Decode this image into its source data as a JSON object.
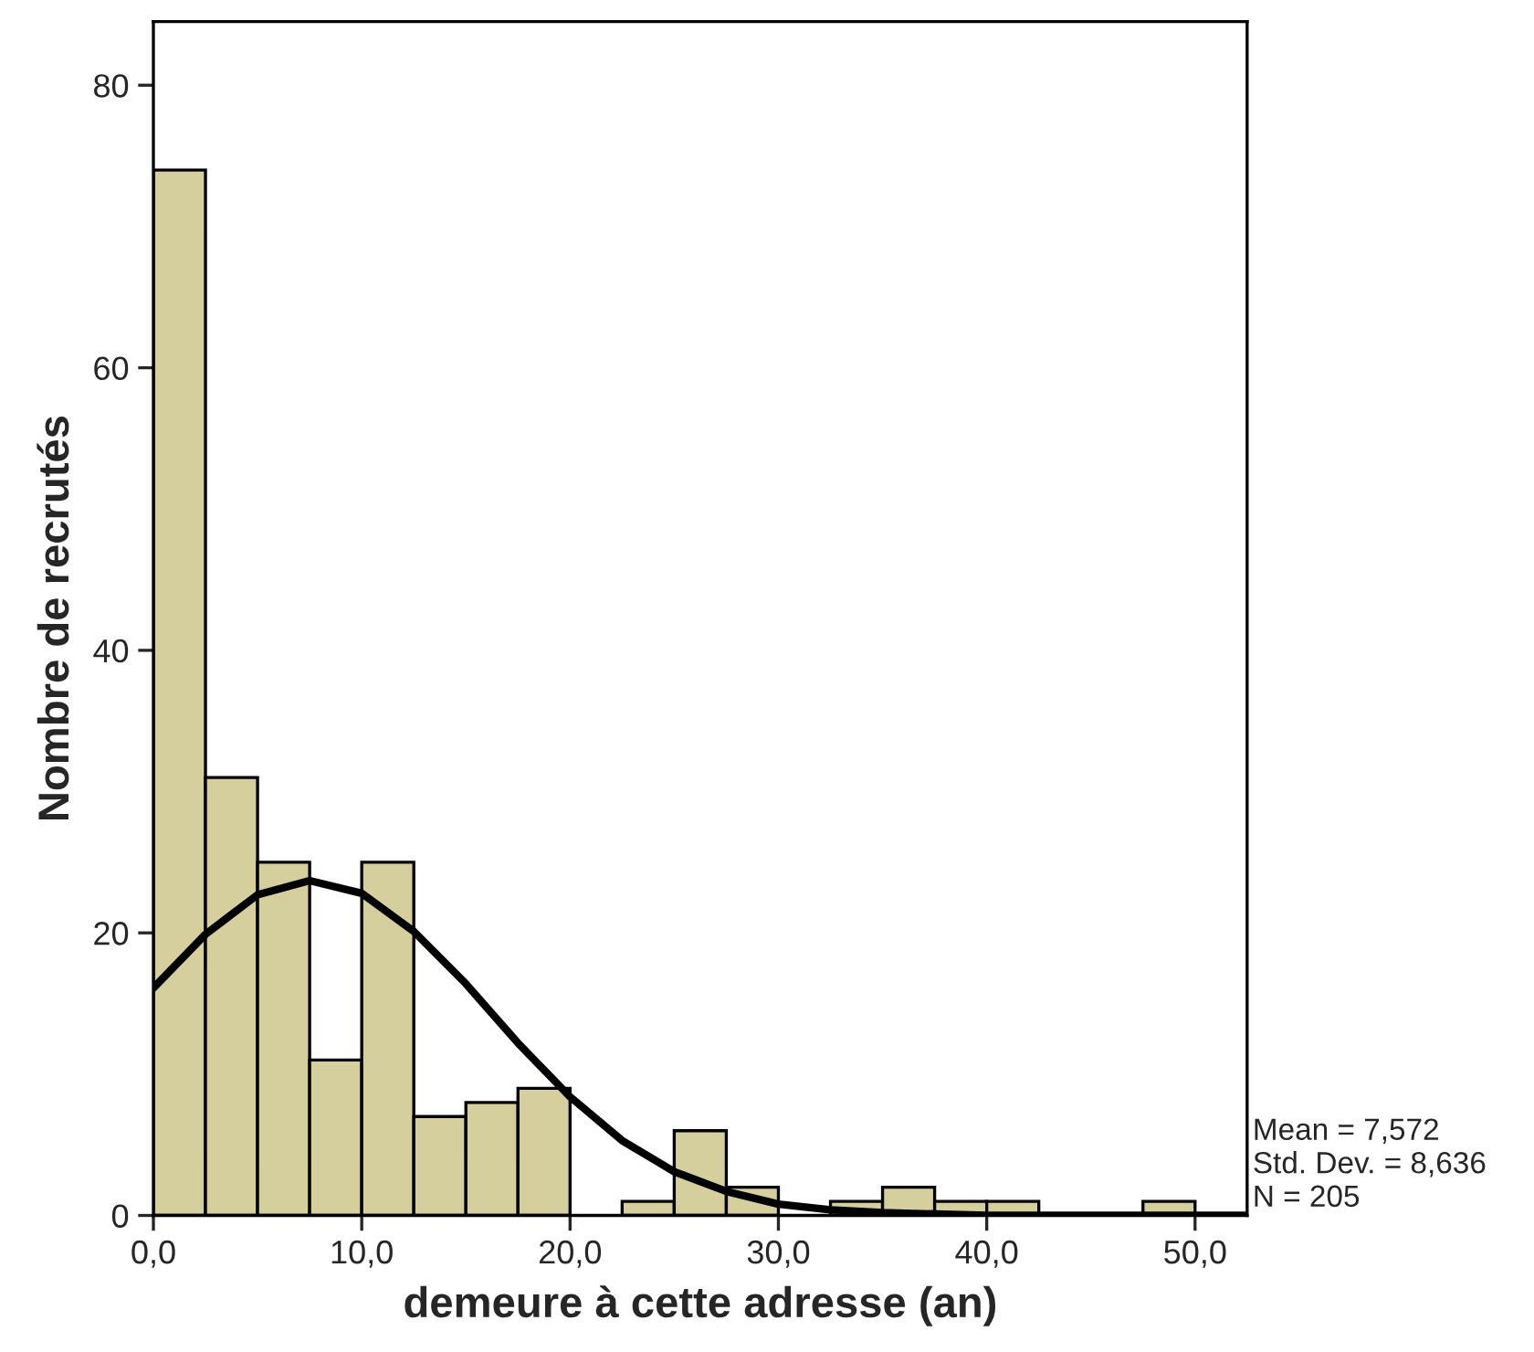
{
  "chart_data": {
    "type": "histogram",
    "xlabel": "demeure à cette adresse (an)",
    "ylabel": "Nombre de recrutés",
    "bins": [
      0,
      2.5,
      5,
      7.5,
      10,
      12.5,
      15,
      17.5,
      20,
      22.5,
      25,
      27.5,
      30,
      32.5,
      35,
      37.5,
      40,
      42.5,
      45,
      47.5,
      50
    ],
    "values": [
      74,
      31,
      25,
      11,
      25,
      7,
      8,
      9,
      0,
      1,
      6,
      2,
      0,
      1,
      2,
      1,
      1,
      0,
      0,
      1
    ],
    "color": "#d4cf9c",
    "series": [
      {
        "type": "line",
        "color": "#000000",
        "x": [
          0,
          2.5,
          5,
          7.5,
          10,
          12.5,
          15,
          17.5,
          20,
          22.5,
          25,
          27.5,
          30,
          32.5,
          35,
          40,
          45,
          52.5
        ],
        "values": [
          16.1,
          19.9,
          22.7,
          23.7,
          22.8,
          20.1,
          16.4,
          12.2,
          8.4,
          5.3,
          3.1,
          1.7,
          0.8,
          0.4,
          0.2,
          0,
          0,
          0
        ]
      }
    ],
    "xlim": [
      0,
      52.5
    ],
    "ylim": [
      0,
      84.5
    ],
    "xticks": [
      {
        "value": 0,
        "label": "0,0"
      },
      {
        "value": 10,
        "label": "10,0"
      },
      {
        "value": 20,
        "label": "20,0"
      },
      {
        "value": 30,
        "label": "30,0"
      },
      {
        "value": 40,
        "label": "40,0"
      },
      {
        "value": 50,
        "label": "50,0"
      }
    ],
    "yticks": [
      0,
      20,
      40,
      60,
      80
    ],
    "grid": false,
    "legend": false,
    "annotations": [
      "Mean = 7,572",
      "Std. Dev. = 8,636",
      "N = 205"
    ]
  }
}
